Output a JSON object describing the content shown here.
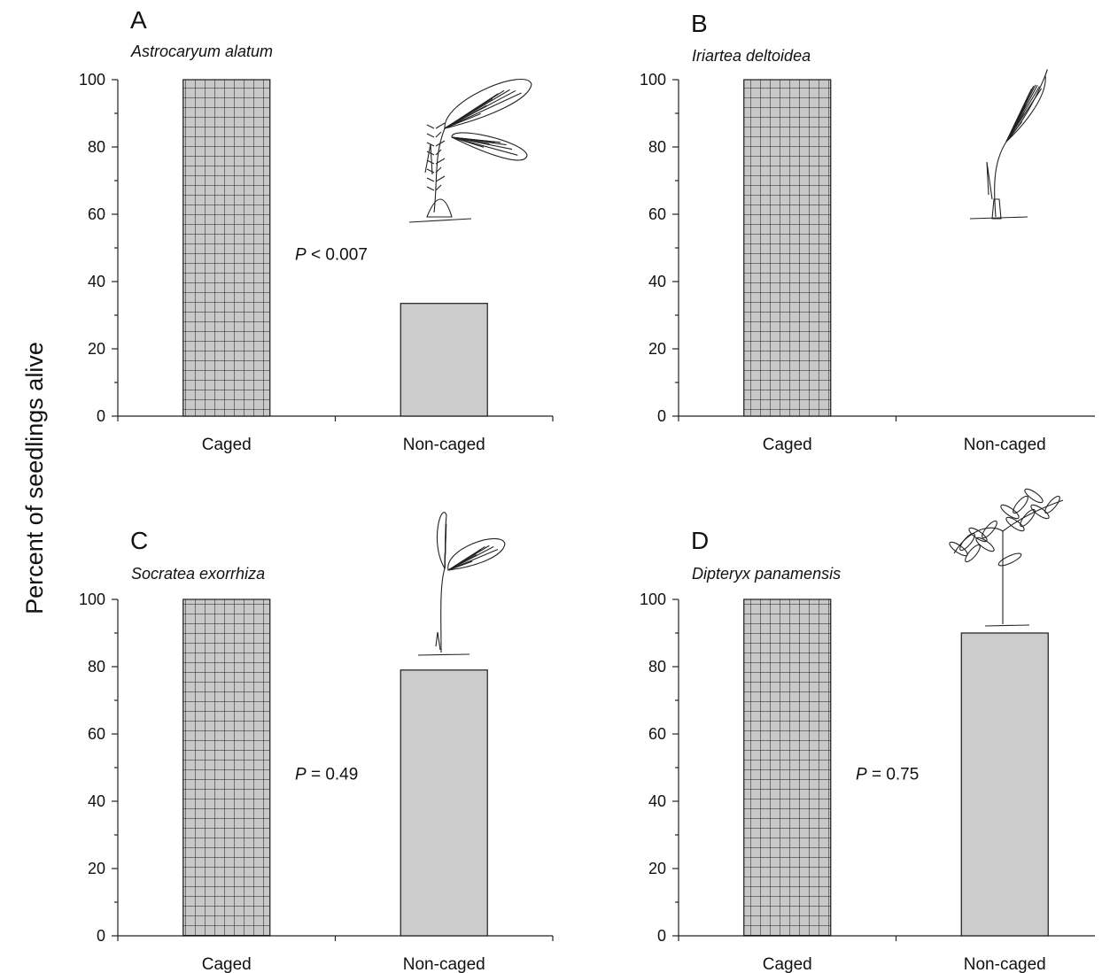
{
  "figure": {
    "ylabel": "Percent of seedlings alive"
  },
  "chart_data": [
    {
      "type": "bar",
      "panel": "A",
      "title": "Astrocaryum alatum",
      "categories": [
        "Caged",
        "Non-caged"
      ],
      "values": [
        100,
        33.5
      ],
      "ylim": [
        0,
        100
      ],
      "yticks": [
        0,
        20,
        40,
        60,
        80,
        100
      ],
      "annotation": {
        "p": "P",
        "rest": " < 0.007"
      },
      "bar_styles": [
        "hatched-grid",
        "solid-gray"
      ],
      "plant_icon": "palm-seedling-spiny-icon"
    },
    {
      "type": "bar",
      "panel": "B",
      "title": "Iriartea deltoidea",
      "categories": [
        "Caged",
        "Non-caged"
      ],
      "values": [
        100,
        0
      ],
      "ylim": [
        0,
        100
      ],
      "yticks": [
        0,
        20,
        40,
        60,
        80,
        100
      ],
      "annotation": null,
      "bar_styles": [
        "hatched-grid",
        "solid-gray"
      ],
      "plant_icon": "palm-seedling-single-leaf-icon"
    },
    {
      "type": "bar",
      "panel": "C",
      "title": "Socratea exorrhiza",
      "categories": [
        "Caged",
        "Non-caged"
      ],
      "values": [
        100,
        79
      ],
      "ylim": [
        0,
        100
      ],
      "yticks": [
        0,
        20,
        40,
        60,
        80,
        100
      ],
      "annotation": {
        "p": "P",
        "rest": " = 0.49"
      },
      "bar_styles": [
        "hatched-grid",
        "solid-gray"
      ],
      "plant_icon": "palm-seedling-split-leaf-icon"
    },
    {
      "type": "bar",
      "panel": "D",
      "title": "Dipteryx panamensis",
      "categories": [
        "Caged",
        "Non-caged"
      ],
      "values": [
        100,
        90
      ],
      "ylim": [
        0,
        100
      ],
      "yticks": [
        0,
        20,
        40,
        60,
        80,
        100
      ],
      "annotation": {
        "p": "P",
        "rest": " = 0.75"
      },
      "bar_styles": [
        "hatched-grid",
        "solid-gray"
      ],
      "plant_icon": "compound-leaf-seedling-icon"
    }
  ],
  "colors": {
    "caged_fill": "#c8c8c8",
    "noncaged_fill": "#cccccc",
    "grid_line": "#1a1a1a",
    "axis": "#222222"
  }
}
